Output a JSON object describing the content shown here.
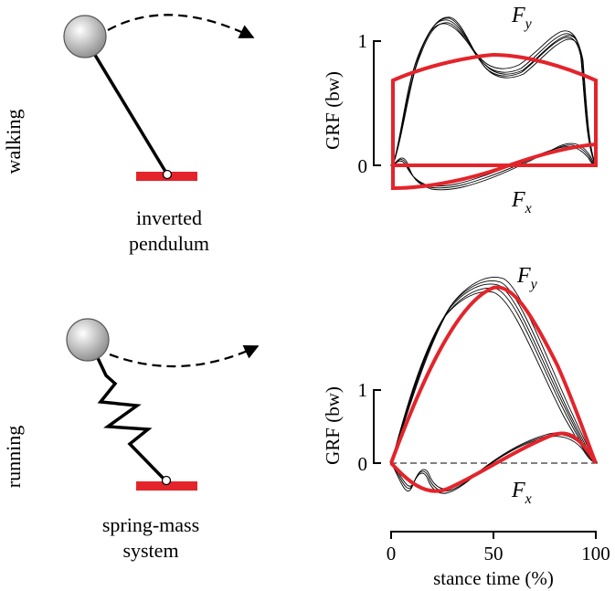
{
  "rows": [
    {
      "side_label": "walking",
      "model_caption": [
        "inverted",
        "pendulum"
      ],
      "y_axis_label": "GRF (bw)",
      "y_ticks": [
        "0",
        "1"
      ],
      "fy_label": {
        "main": "F",
        "sub": "y"
      },
      "fx_label": {
        "main": "F",
        "sub": "x"
      }
    },
    {
      "side_label": "running",
      "model_caption": [
        "spring-mass",
        "system"
      ],
      "y_axis_label": "GRF (bw)",
      "y_ticks": [
        "0",
        "1"
      ],
      "fy_label": {
        "main": "F",
        "sub": "y"
      },
      "fx_label": {
        "main": "F",
        "sub": "x"
      }
    }
  ],
  "x_axis": {
    "label": "stance time (%)",
    "ticks": [
      "0",
      "50",
      "100"
    ]
  },
  "colors": {
    "model": "#e3242b",
    "data": "#000000",
    "mass_highlight": "#ffffff",
    "mass_shadow": "#8a8a8a"
  }
}
